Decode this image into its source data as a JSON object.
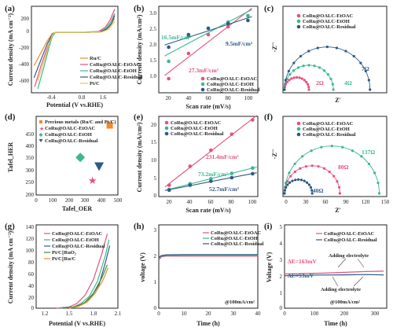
{
  "colors": {
    "etoac": "#e8507a",
    "etoh": "#3bb890",
    "residual": "#2e5a86",
    "ruc": "#f28a28",
    "ptc": "#e8c650",
    "ptc_ruo2": "#3c8a3c"
  },
  "chart_data": [
    {
      "panel": "(a)",
      "type": "line",
      "xlabel": "Potential (V vs.RHE)",
      "ylabel": "Current density (mA cm⁻²)",
      "xlim": [
        -0.7,
        2.0
      ],
      "ylim": [
        -600,
        260
      ],
      "xticks": [
        -0.4,
        0.8,
        1.6
      ],
      "yticks": [
        -600,
        -400,
        -200,
        0,
        200
      ],
      "series": [
        {
          "name": "Ru/C",
          "x": [
            -0.62,
            -0.4,
            -0.2,
            -0.05,
            0.05,
            0.8,
            1.4,
            1.6,
            1.75,
            1.9
          ],
          "y": [
            -330,
            -200,
            -80,
            -10,
            0,
            0,
            5,
            20,
            60,
            140
          ]
        },
        {
          "name": "CoRu@OALC-EtOAC",
          "x": [
            -0.6,
            -0.4,
            -0.2,
            -0.05,
            0.05,
            0.8,
            1.4,
            1.6,
            1.75,
            1.9
          ],
          "y": [
            -540,
            -330,
            -150,
            -30,
            0,
            0,
            10,
            50,
            120,
            230
          ]
        },
        {
          "name": "CoRu@OALC-EtOH",
          "x": [
            -0.5,
            -0.3,
            -0.15,
            -0.05,
            0.05,
            0.8,
            1.45,
            1.62,
            1.77,
            1.9
          ],
          "y": [
            -560,
            -330,
            -150,
            -40,
            0,
            0,
            5,
            40,
            100,
            190
          ]
        },
        {
          "name": "CoRu@OALC-Residual",
          "x": [
            -0.62,
            -0.4,
            -0.2,
            -0.05,
            0.05,
            0.8,
            1.45,
            1.65,
            1.8,
            1.9
          ],
          "y": [
            -450,
            -270,
            -110,
            -20,
            0,
            0,
            5,
            35,
            90,
            170
          ]
        },
        {
          "name": "Pt/C",
          "x": [
            -0.5,
            -0.3,
            -0.15,
            -0.05,
            0.05,
            0.8,
            1.5,
            1.7,
            1.8,
            1.9
          ],
          "y": [
            -480,
            -280,
            -120,
            -25,
            0,
            0,
            5,
            30,
            70,
            110
          ]
        }
      ]
    },
    {
      "panel": "(b)",
      "type": "scatter",
      "xlabel": "Scan rate (mV/s)",
      "ylabel": "Current density (mA/cm²)",
      "xlim": [
        10,
        110
      ],
      "ylim": [
        0.5,
        3.25
      ],
      "xticks": [
        20,
        40,
        60,
        80,
        100
      ],
      "yticks": [
        1.0,
        1.5,
        2.0,
        2.5,
        3.0
      ],
      "series": [
        {
          "name": "CoRu@OALC-EtOAC",
          "x": [
            20,
            40,
            60,
            80,
            100
          ],
          "y": [
            0.95,
            1.75,
            2.35,
            2.6,
            2.95
          ]
        },
        {
          "name": "CoRu@OALC-EtOH",
          "x": [
            20,
            40,
            60,
            80,
            100
          ],
          "y": [
            1.5,
            2.3,
            2.55,
            2.75,
            2.95
          ]
        },
        {
          "name": "CoRu@OALC-Residual",
          "x": [
            20,
            40,
            60,
            80,
            100
          ],
          "y": [
            1.95,
            2.35,
            2.55,
            2.7,
            2.8
          ]
        }
      ],
      "annotations": [
        "16.5mF/cm²",
        "9.5mF/cm²",
        "27.3mF/cm²"
      ]
    },
    {
      "panel": "(c)",
      "type": "line",
      "xlabel": "Z'",
      "ylabel": "-Z''",
      "series": [
        {
          "name": "CoRu@OALC-EtOAC",
          "diameter": 2
        },
        {
          "name": "CoRu@OALC-EtOH",
          "diameter": 4
        },
        {
          "name": "CoRu@OALC-Residual",
          "diameter": 7
        }
      ],
      "annotations": [
        "2Ω",
        "4Ω",
        "7Ω"
      ]
    },
    {
      "panel": "(d)",
      "type": "scatter",
      "xlabel": "Tafel_OER",
      "ylabel": "Tafel_HER",
      "xlim": [
        0,
        500
      ],
      "ylim": [
        160,
        480
      ],
      "xticks": [
        0,
        100,
        200,
        300,
        400,
        500
      ],
      "yticks": [
        200,
        250,
        300,
        350,
        400,
        450
      ],
      "series": [
        {
          "name": "Precious metals (Ru/C and Pt/C)",
          "x": [
            450
          ],
          "y": [
            443
          ]
        },
        {
          "name": "CoRu@OALC-EtOAC",
          "x": [
            345
          ],
          "y": [
            217
          ]
        },
        {
          "name": "CoRu@OALC-EtOH",
          "x": [
            270
          ],
          "y": [
            313
          ]
        },
        {
          "name": "CoRu@OALC-Residual",
          "x": [
            385
          ],
          "y": [
            277
          ]
        }
      ]
    },
    {
      "panel": "(e)",
      "type": "scatter",
      "xlabel": "Scan rate (mV/s)",
      "ylabel": "Current density (mA/cm²)",
      "xlim": [
        10,
        105
      ],
      "ylim": [
        0,
        22.5
      ],
      "xticks": [
        20,
        40,
        60,
        80,
        100
      ],
      "yticks": [
        0,
        5,
        10,
        15,
        20
      ],
      "series": [
        {
          "name": "CoRu@OALC-EtOAC",
          "x": [
            20,
            40,
            60,
            80,
            100
          ],
          "y": [
            3.2,
            8.5,
            13.0,
            17.5,
            21.5
          ]
        },
        {
          "name": "CoRu@OALC-EtOH",
          "x": [
            20,
            40,
            60,
            80,
            100
          ],
          "y": [
            2.0,
            3.6,
            5.0,
            6.5,
            8.0
          ]
        },
        {
          "name": "CoRu@OALC-Residual",
          "x": [
            20,
            40,
            60,
            80,
            100
          ],
          "y": [
            1.8,
            3.2,
            4.3,
            5.3,
            6.4
          ]
        }
      ],
      "annotations": [
        "231.4mF/cm²",
        "73.2mF/cm²",
        "52.7mF/cm²"
      ]
    },
    {
      "panel": "(f)",
      "type": "line",
      "xlabel": "Z'",
      "ylabel": "-Z''",
      "xticks": [
        0,
        30,
        60,
        90,
        120,
        150
      ],
      "xlim": [
        0,
        150
      ],
      "series": [
        {
          "name": "CoRu@OALC-EtOAC",
          "diameter": 80
        },
        {
          "name": "CoRu@OALC-EtOH",
          "diameter": 137
        },
        {
          "name": "CoRu@OALC-Residual",
          "diameter": 40
        }
      ],
      "annotations": [
        "137Ω",
        "80Ω",
        "40Ω"
      ]
    },
    {
      "panel": "(g)",
      "type": "line",
      "xlabel": "Potential (V vs.RHE)",
      "ylabel": "Current density (mA cm⁻²)",
      "xlim": [
        1.1,
        2.1
      ],
      "ylim": [
        0,
        140
      ],
      "xticks": [
        1.2,
        1.5,
        1.8,
        2.1
      ],
      "yticks": [
        0,
        20,
        40,
        60,
        80,
        100,
        120,
        140
      ],
      "series": [
        {
          "name": "CoRu@OALC-EtOAC",
          "x": [
            1.35,
            1.5,
            1.6,
            1.7,
            1.8,
            1.9,
            1.97
          ],
          "y": [
            0,
            2,
            8,
            22,
            48,
            90,
            125
          ]
        },
        {
          "name": "CoRu@OALC-EtOH",
          "x": [
            1.4,
            1.55,
            1.65,
            1.75,
            1.85,
            1.95,
            1.99
          ],
          "y": [
            0,
            2,
            8,
            20,
            45,
            90,
            115
          ]
        },
        {
          "name": "CoRu@OALC-Residual",
          "x": [
            1.42,
            1.57,
            1.67,
            1.77,
            1.87,
            1.95,
            2.0
          ],
          "y": [
            0,
            2,
            7,
            18,
            40,
            78,
            105
          ]
        },
        {
          "name": "Pt/C||RuO₂",
          "x": [
            1.45,
            1.6,
            1.7,
            1.8,
            1.9,
            1.97
          ],
          "y": [
            0,
            3,
            10,
            25,
            50,
            73
          ]
        },
        {
          "name": "Pt/C||Ru/C",
          "x": [
            1.5,
            1.62,
            1.72,
            1.82,
            1.92,
            1.98
          ],
          "y": [
            0,
            3,
            10,
            25,
            48,
            68
          ]
        }
      ]
    },
    {
      "panel": "(h)",
      "type": "line",
      "xlabel": "Time (h)",
      "ylabel": "voltage (V)",
      "xlim": [
        0,
        40
      ],
      "ylim": [
        0,
        3.2
      ],
      "xticks": [
        0,
        10,
        20,
        30,
        40
      ],
      "yticks": [
        0,
        1,
        2,
        3
      ],
      "series": [
        {
          "name": "CoRu@OALC-EtOAC",
          "x": [
            0,
            1,
            3,
            10,
            20,
            30,
            40
          ],
          "y": [
            1.85,
            1.97,
            2.0,
            2.0,
            2.0,
            2.0,
            2.0
          ]
        },
        {
          "name": "CoRu@OALC-EtOH",
          "x": [
            0,
            1,
            3,
            10,
            20,
            30,
            40
          ],
          "y": [
            1.9,
            2.0,
            2.02,
            2.03,
            2.03,
            2.03,
            2.03
          ]
        },
        {
          "name": "CoRu@OALC-Residual",
          "x": [
            0,
            1,
            3,
            10,
            20,
            30,
            40
          ],
          "y": [
            1.95,
            2.02,
            2.05,
            2.06,
            2.06,
            2.06,
            2.06
          ]
        }
      ],
      "annotations": [
        "@100mA/cm²"
      ]
    },
    {
      "panel": "(i)",
      "type": "line",
      "xlabel": "Time (h)",
      "ylabel": "Voltage (V)",
      "xlim": [
        0,
        340
      ],
      "ylim": [
        0,
        5
      ],
      "xticks": [
        0,
        100,
        200,
        300
      ],
      "yticks": [
        0,
        1,
        2,
        3,
        4,
        5
      ],
      "series": [
        {
          "name": "CoRu@OALC-EtOAC",
          "x": [
            0,
            60,
            120,
            200,
            270,
            330
          ],
          "y": [
            2.05,
            2.08,
            2.1,
            2.15,
            2.2,
            2.22
          ]
        },
        {
          "name": "CoRu@OALC-Residual",
          "x": [
            0,
            60,
            120,
            200,
            270,
            330
          ],
          "y": [
            1.95,
            1.97,
            1.99,
            2.0,
            2.02,
            2.0
          ]
        }
      ],
      "annotations": [
        "ΔE=163mV",
        "ΔE=53mV",
        "Adding electrolyte",
        "Adding electrolyte",
        "@100mA/cm²"
      ]
    }
  ],
  "panels": {
    "a": {
      "label": "(a)",
      "ylabel": "Current density (mA cm⁻²)",
      "xlabel": "Potential (V vs.RHE)",
      "legend": [
        "Ru/C",
        "CoRu@OALC-EtOAC",
        "CoRu@OALC-EtOH",
        "CoRu@OALC-Residual",
        "Pt/C"
      ],
      "xticks": [
        "-0.4",
        "0.8",
        "1.6"
      ],
      "yticks": [
        "200",
        "0",
        "-200",
        "-400",
        "-600"
      ]
    },
    "b": {
      "label": "(b)",
      "ylabel": "Current density (mA/cm²)",
      "xlabel": "Scan rate (mV/s)",
      "legend": [
        "CoRu@OALC-EtOAC",
        "CoRu@OALC-EtOH",
        "CoRu@OALC-Residual"
      ],
      "xticks": [
        "20",
        "40",
        "60",
        "80",
        "100"
      ],
      "yticks": [
        "3.0",
        "2.5",
        "2.0",
        "1.5",
        "1.0"
      ],
      "ann1": "16.5mF/cm²",
      "ann2": "9.5mF/cm²",
      "ann3": "27.3mF/cm²"
    },
    "c": {
      "label": "(c)",
      "ylabel": "-Z''",
      "xlabel": "Z'",
      "legend": [
        "CoRu@OALC-EtOAC",
        "CoRu@OALC-EtOH",
        "CoRu@OALC-Residual"
      ],
      "ann1": "2Ω",
      "ann2": "4Ω",
      "ann3": "7Ω"
    },
    "d": {
      "label": "(d)",
      "ylabel": "Tafel_HER",
      "xlabel": "Tafel_OER",
      "legend": [
        "Precious metals (Ru/C and Pt/C)",
        "CoRu@OALC-EtOAC",
        "CoRu@OALC-EtOH",
        "CoRu@OALC-Residual"
      ],
      "xticks": [
        "0",
        "100",
        "200",
        "300",
        "400",
        "500"
      ],
      "yticks": [
        "450",
        "400",
        "350",
        "300",
        "250",
        "200"
      ]
    },
    "e": {
      "label": "(e)",
      "ylabel": "Current density (mA/cm²)",
      "xlabel": "Scan rate (mV/s)",
      "legend": [
        "CoRu@OALC-EtOAC",
        "CoRu@OALC-EtOH",
        "CoRu@OALC-Residual"
      ],
      "xticks": [
        "20",
        "40",
        "60",
        "80",
        "100"
      ],
      "yticks": [
        "20",
        "15",
        "10",
        "5",
        "0"
      ],
      "ann1": "231.4mF/cm²",
      "ann2": "73.2mF/cm²",
      "ann3": "52.7mF/cm²"
    },
    "f": {
      "label": "(f)",
      "ylabel": "-Z''",
      "xlabel": "Z'",
      "legend": [
        "CoRu@OALC-EtOAC",
        "CoRu@OALC-EtOH",
        "CoRu@OALC-Residual"
      ],
      "xticks": [
        "0",
        "30",
        "60",
        "90",
        "120",
        "150"
      ],
      "ann1": "137Ω",
      "ann2": "80Ω",
      "ann3": "40Ω"
    },
    "g": {
      "label": "(g)",
      "ylabel": "Current density (mA cm⁻²)",
      "xlabel": "Potential (V vs.RHE)",
      "legend": [
        "CoRu@OALC-EtOAC",
        "CoRu@OALC-EtOH",
        "CoRu@OALC-Residual",
        "Pt/C||RuO₂",
        "Pt/C||Ru/C"
      ],
      "xticks": [
        "1.2",
        "1.5",
        "1.8",
        "2.1"
      ],
      "yticks": [
        "140",
        "120",
        "100",
        "80",
        "60",
        "40",
        "20",
        "0"
      ]
    },
    "h": {
      "label": "(h)",
      "ylabel": "voltage (V)",
      "xlabel": "Time (h)",
      "legend": [
        "CoRu@OALC-EtOAC",
        "CoRu@OALC-EtOH",
        "CoRu@OALC-Residual"
      ],
      "xticks": [
        "0",
        "10",
        "20",
        "30",
        "40"
      ],
      "yticks": [
        "3",
        "2",
        "1",
        "0"
      ],
      "ann1": "@100mA/cm²"
    },
    "i": {
      "label": "(i)",
      "ylabel": "Voltage (V)",
      "xlabel": "Time (h)",
      "legend": [
        "CoRu@OALC-EtOAC",
        "CoRu@OALC-Residual"
      ],
      "xticks": [
        "0",
        "100",
        "200",
        "300"
      ],
      "yticks": [
        "5",
        "4",
        "3",
        "2",
        "1",
        "0"
      ],
      "ann1": "ΔE=163mV",
      "ann2": "ΔE=53mV",
      "ann3": "Adding electrolyte",
      "ann4": "Adding electrolyte",
      "ann5": "@100mA/cm²"
    }
  }
}
